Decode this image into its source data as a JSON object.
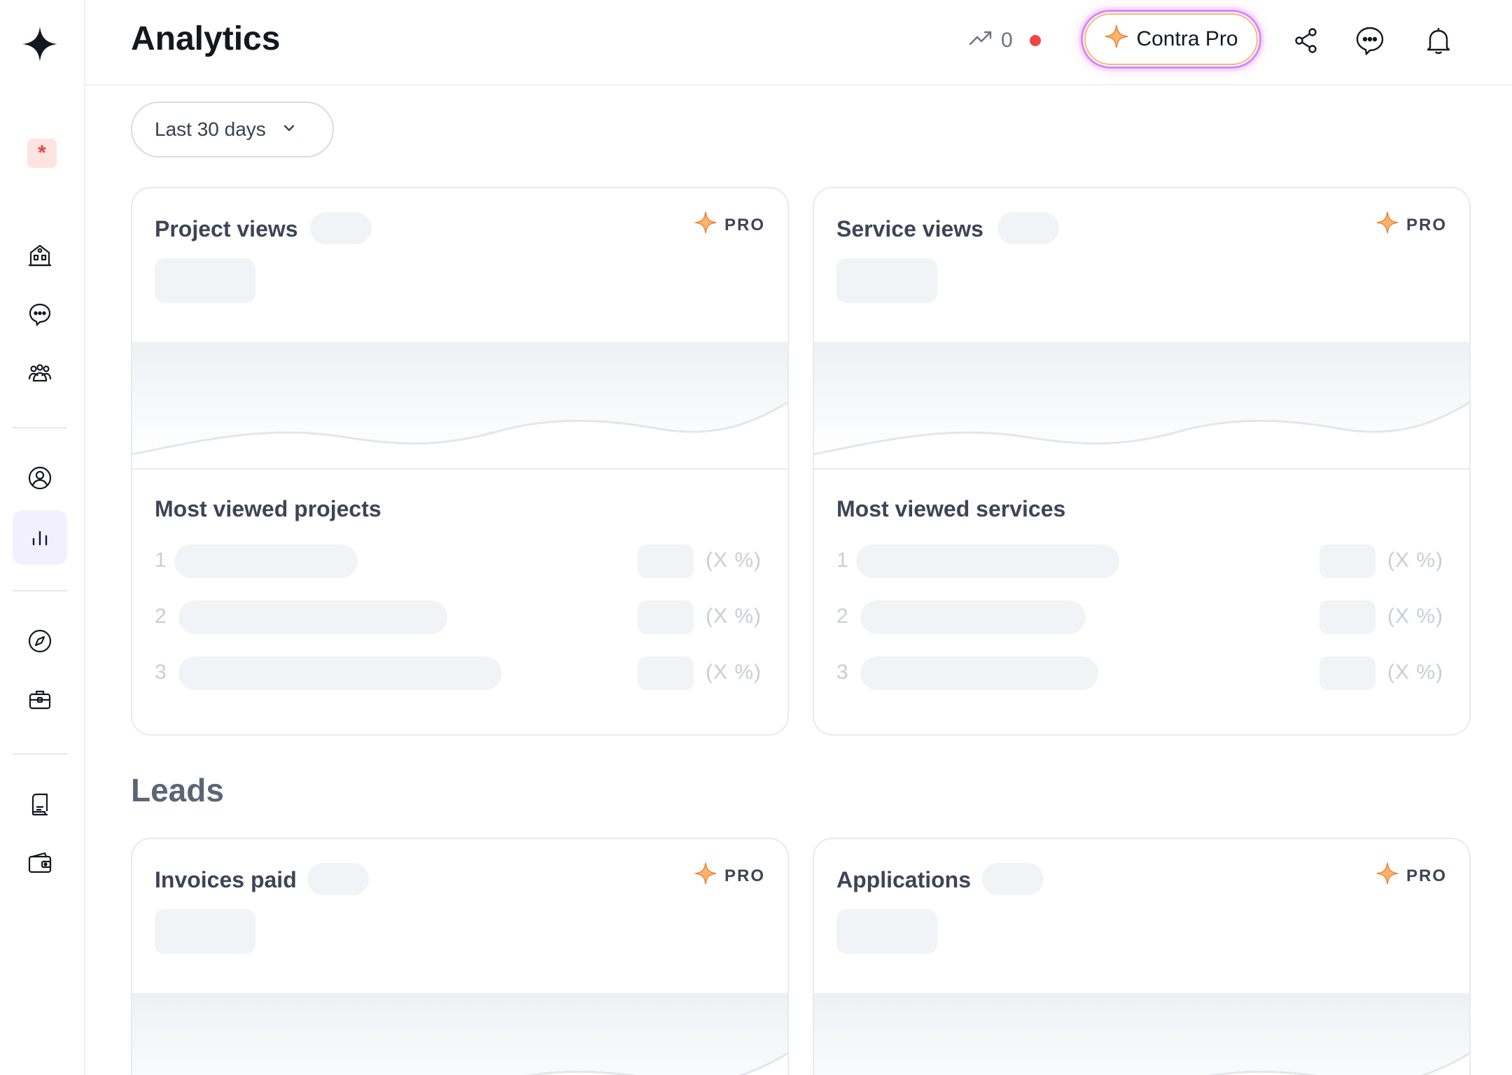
{
  "header": {
    "title": "Analytics",
    "trend_value": "0",
    "pro_button_label": "Contra Pro"
  },
  "workspace_badge": "*",
  "filter": {
    "date_range": "Last 30 days"
  },
  "cards_top": [
    {
      "title": "Project views",
      "pro_label": "PRO",
      "list_title": "Most viewed projects",
      "rows": [
        {
          "rank": "1",
          "pct": "(X %)"
        },
        {
          "rank": "2",
          "pct": "(X %)"
        },
        {
          "rank": "3",
          "pct": "(X %)"
        }
      ]
    },
    {
      "title": "Service views",
      "pro_label": "PRO",
      "list_title": "Most viewed services",
      "rows": [
        {
          "rank": "1",
          "pct": "(X %)"
        },
        {
          "rank": "2",
          "pct": "(X %)"
        },
        {
          "rank": "3",
          "pct": "(X %)"
        }
      ]
    }
  ],
  "section": {
    "leads_heading": "Leads"
  },
  "cards_bottom": [
    {
      "title": "Invoices paid",
      "pro_label": "PRO"
    },
    {
      "title": "Applications",
      "pro_label": "PRO"
    }
  ],
  "colors": {
    "accent_purple": "#d884ff",
    "accent_orange": "#ff9a3c",
    "notification_red": "#f04545",
    "active_nav_bg": "#f2f0ff"
  },
  "icons": {
    "sidebar": [
      "logo-icon",
      "home-icon",
      "messages-icon",
      "community-icon",
      "profile-icon",
      "analytics-icon",
      "discover-icon",
      "jobs-icon",
      "invoices-icon",
      "wallet-icon"
    ],
    "header": [
      "trend-icon",
      "sparkle-icon",
      "share-icon",
      "chat-icon",
      "bell-icon"
    ]
  }
}
